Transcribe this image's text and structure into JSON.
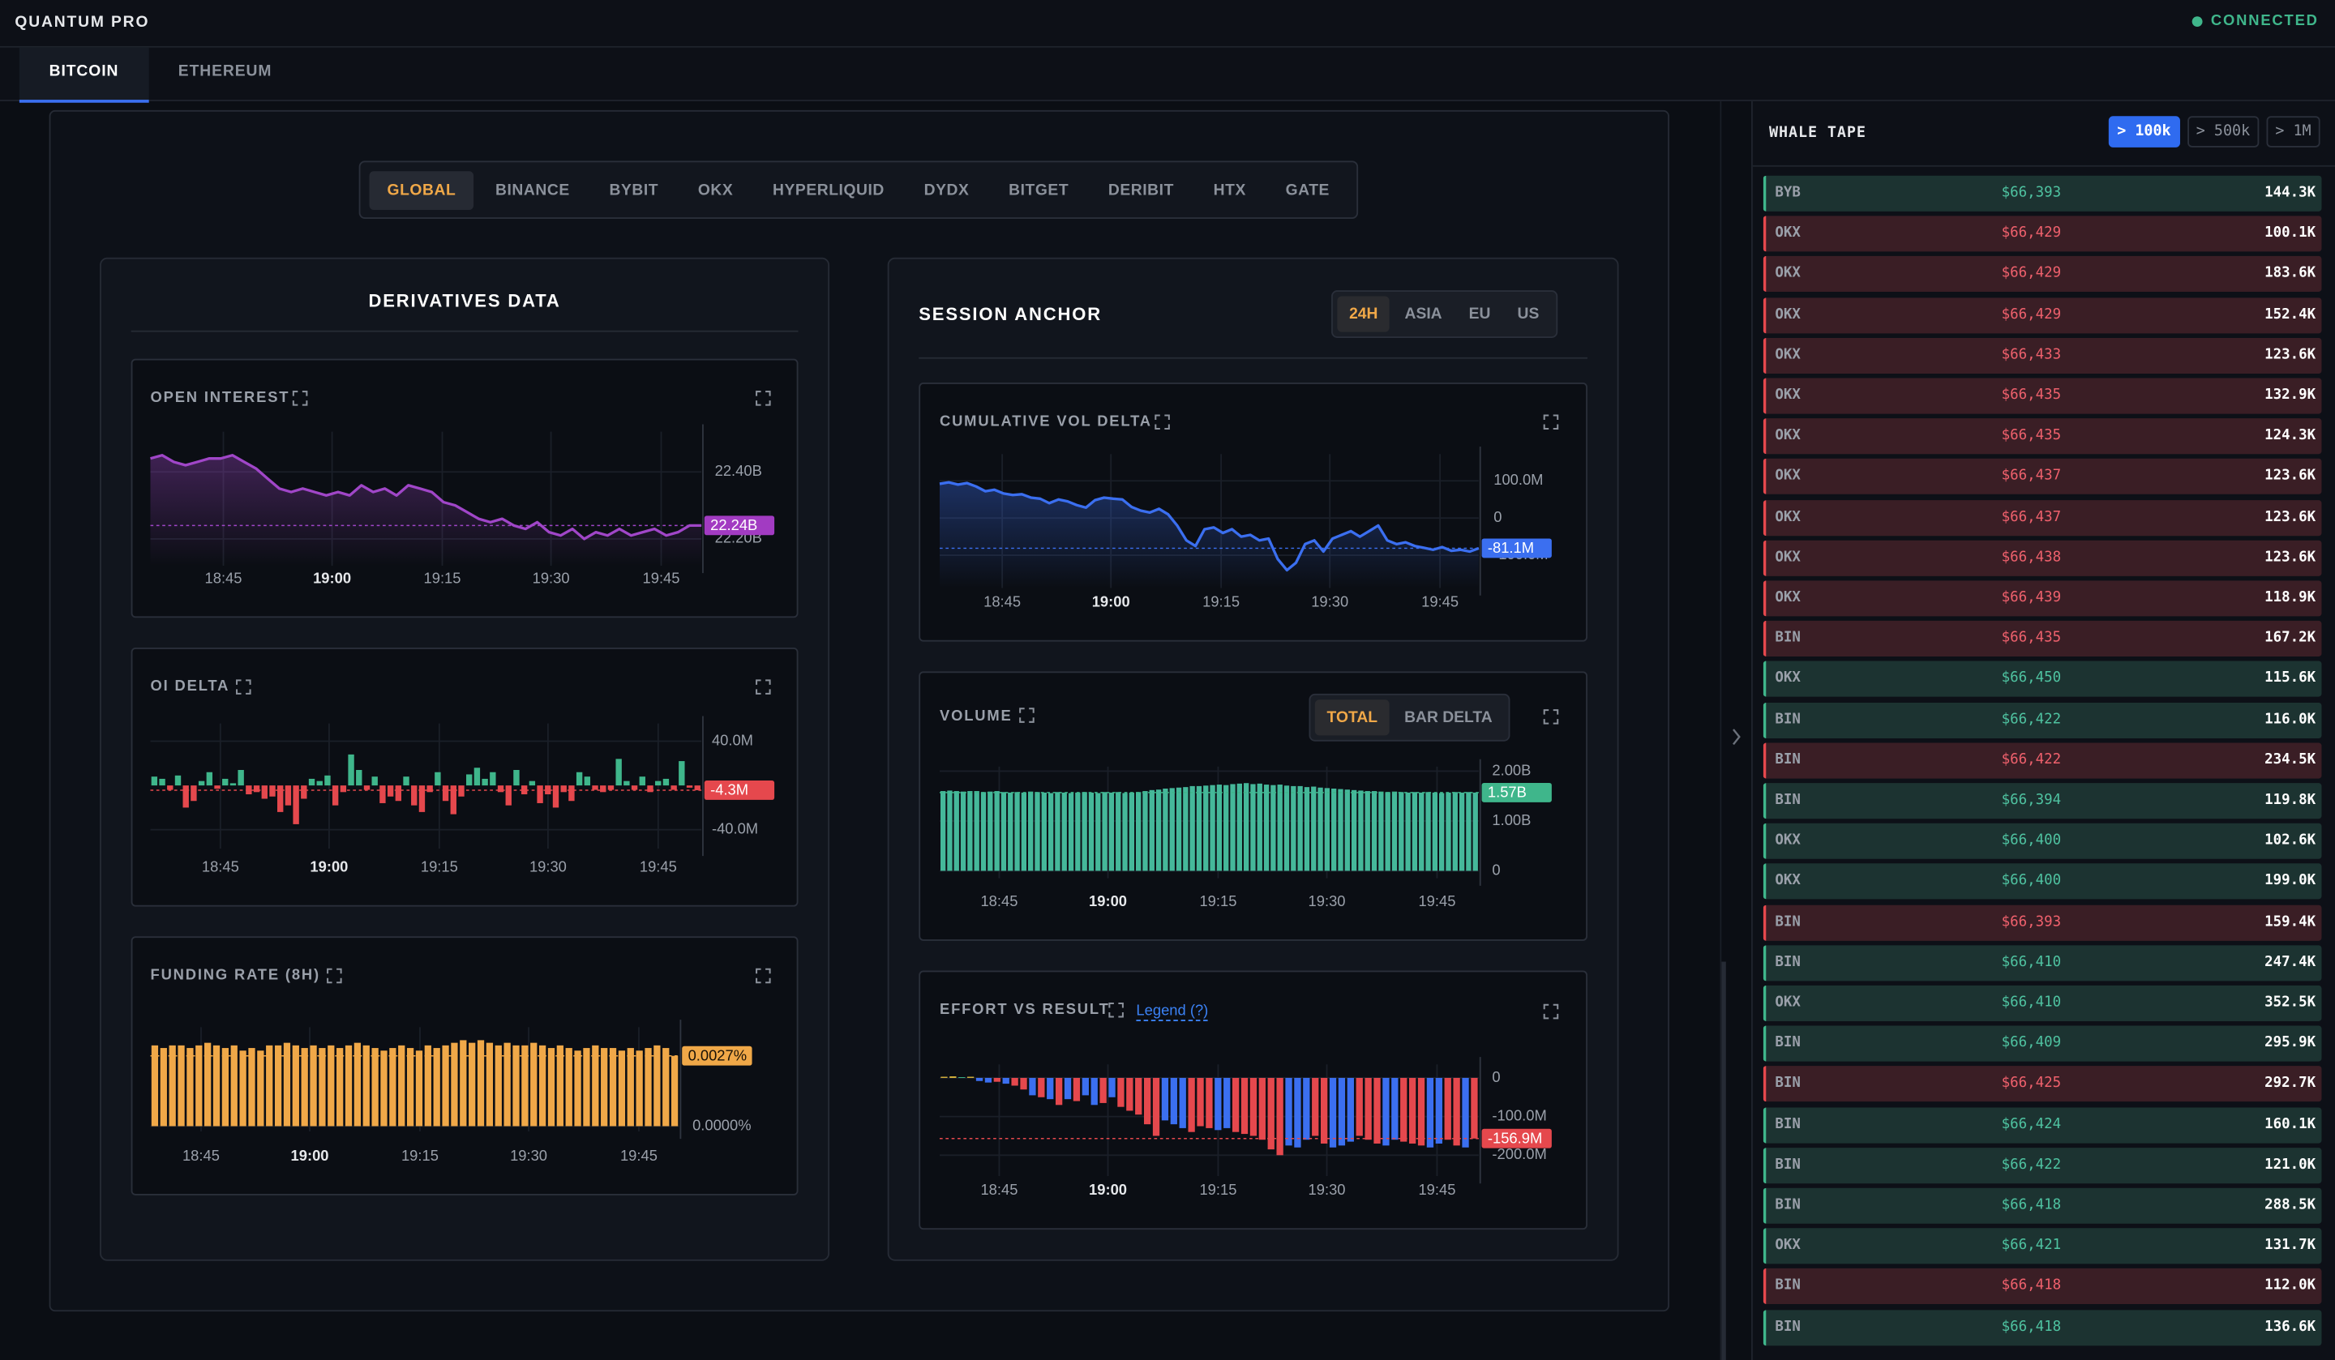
{
  "header": {
    "brand": "QUANTUM PRO",
    "status": "CONNECTED"
  },
  "tabs": [
    "BITCOIN",
    "ETHEREUM"
  ],
  "exchanges": [
    "GLOBAL",
    "BINANCE",
    "BYBIT",
    "OKX",
    "HYPERLIQUID",
    "DYDX",
    "BITGET",
    "DERIBIT",
    "HTX",
    "GATE"
  ],
  "derivatives": {
    "title": "DERIVATIVES DATA"
  },
  "session": {
    "title": "SESSION ANCHOR",
    "sessions": [
      "24H",
      "ASIA",
      "EU",
      "US"
    ]
  },
  "chart_data": [
    {
      "type": "line",
      "title": "OPEN INTEREST",
      "color": "#a046c8",
      "grid": true,
      "xticks": [
        "18:45",
        "19:00",
        "19:15",
        "19:30",
        "19:45"
      ],
      "ylim": [
        22.12,
        22.52
      ],
      "yticks": [
        {
          "value": 22.4,
          "label": "22.40B"
        },
        {
          "value": 22.2,
          "label": "22.20B"
        }
      ],
      "badge": "22.24B",
      "badge_color": "#a23bc2",
      "values": [
        22.44,
        22.45,
        22.43,
        22.42,
        22.43,
        22.44,
        22.44,
        22.45,
        22.43,
        22.41,
        22.38,
        22.35,
        22.34,
        22.35,
        22.34,
        22.33,
        22.34,
        22.33,
        22.36,
        22.34,
        22.35,
        22.33,
        22.36,
        22.35,
        22.34,
        22.31,
        22.3,
        22.28,
        22.26,
        22.25,
        22.26,
        22.24,
        22.23,
        22.25,
        22.22,
        22.21,
        22.23,
        22.2,
        22.22,
        22.21,
        22.23,
        22.21,
        22.22,
        22.23,
        22.21,
        22.22,
        22.24,
        22.24
      ]
    },
    {
      "type": "bar",
      "title": "OI DELTA",
      "color_up": "#3fb68b",
      "color_down": "#e5484d",
      "grid": true,
      "xticks": [
        "18:45",
        "19:00",
        "19:15",
        "19:30",
        "19:45"
      ],
      "ylim": [
        -57,
        56
      ],
      "yticks": [
        {
          "value": 40,
          "label": "40.0M"
        },
        {
          "value": -40,
          "label": "-40.0M"
        }
      ],
      "badge": "-4.3M",
      "badge_color": "#e5484d",
      "values": [
        8,
        6,
        -4,
        9,
        -20,
        -14,
        4,
        12,
        -3,
        6,
        2,
        14,
        -8,
        -6,
        -12,
        -10,
        -24,
        -18,
        -35,
        -12,
        6,
        4,
        9,
        -18,
        -6,
        28,
        14,
        -4,
        8,
        -16,
        -10,
        -14,
        8,
        -18,
        -24,
        -6,
        12,
        -14,
        -26,
        -10,
        10,
        16,
        6,
        12,
        -6,
        -18,
        14,
        -8,
        4,
        -16,
        -8,
        -20,
        -6,
        -14,
        12,
        8,
        -4,
        -6,
        -4,
        24,
        4,
        -4,
        8,
        -6,
        4,
        6,
        -4,
        22,
        -2,
        -4.3
      ]
    },
    {
      "type": "bar",
      "title": "FUNDING RATE (8H)",
      "color": "#f0a848",
      "grid": true,
      "xticks": [
        "18:45",
        "19:00",
        "19:15",
        "19:30",
        "19:45"
      ],
      "ylim": [
        -0.0002,
        0.0038
      ],
      "yticks": [
        {
          "value": 0,
          "label": "0.0000%"
        }
      ],
      "badge": "0.0027%",
      "badge_color": "#f0a848",
      "values": [
        0.0031,
        0.003,
        0.0031,
        0.0031,
        0.003,
        0.0031,
        0.0032,
        0.0031,
        0.003,
        0.0031,
        0.0029,
        0.003,
        0.0029,
        0.0031,
        0.0031,
        0.0032,
        0.0031,
        0.003,
        0.0031,
        0.003,
        0.0031,
        0.003,
        0.0031,
        0.0032,
        0.0031,
        0.003,
        0.0029,
        0.003,
        0.0031,
        0.003,
        0.0029,
        0.0031,
        0.003,
        0.0031,
        0.0032,
        0.0033,
        0.0032,
        0.0033,
        0.0032,
        0.0031,
        0.0032,
        0.0031,
        0.0031,
        0.0032,
        0.0031,
        0.003,
        0.0031,
        0.003,
        0.0029,
        0.003,
        0.0031,
        0.003,
        0.003,
        0.0029,
        0.003,
        0.0029,
        0.003,
        0.0031,
        0.003,
        0.0027
      ]
    },
    {
      "type": "line",
      "title": "CUMULATIVE VOL DELTA",
      "color": "#3b6ff0",
      "grid": true,
      "xticks": [
        "18:45",
        "19:00",
        "19:15",
        "19:30",
        "19:45"
      ],
      "ylim": [
        -188,
        172
      ],
      "yticks": [
        {
          "value": 100,
          "label": "100.0M"
        },
        0,
        {
          "value": -100,
          "label": "-100.0M"
        }
      ],
      "badge": "-81.1M",
      "badge_color": "#3b6ff0",
      "values": [
        92,
        96,
        90,
        94,
        85,
        72,
        76,
        66,
        62,
        64,
        55,
        52,
        40,
        50,
        45,
        35,
        28,
        48,
        55,
        52,
        50,
        30,
        20,
        15,
        25,
        10,
        -20,
        -60,
        -75,
        -30,
        -25,
        -40,
        -30,
        -50,
        -45,
        -60,
        -55,
        -110,
        -140,
        -120,
        -70,
        -60,
        -90,
        -55,
        -45,
        -35,
        -50,
        -35,
        -20,
        -60,
        -70,
        -65,
        -75,
        -80,
        -85,
        -78,
        -88,
        -85,
        -90,
        -81.1
      ]
    },
    {
      "type": "bar",
      "title": "VOLUME",
      "modes": [
        "TOTAL",
        "BAR DELTA"
      ],
      "color": "#45b89a",
      "grid": true,
      "xticks": [
        "18:45",
        "19:00",
        "19:15",
        "19:30",
        "19:45"
      ],
      "ylim": [
        -0.15,
        2.09
      ],
      "yticks": [
        {
          "value": 2,
          "label": "2.00B"
        },
        {
          "value": 1,
          "label": "1.00B"
        },
        0
      ],
      "badge": "1.57B",
      "badge_color": "#3fb68b",
      "values": [
        1.6,
        1.61,
        1.6,
        1.59,
        1.6,
        1.6,
        1.58,
        1.59,
        1.6,
        1.58,
        1.57,
        1.58,
        1.57,
        1.59,
        1.58,
        1.57,
        1.56,
        1.58,
        1.57,
        1.56,
        1.57,
        1.58,
        1.57,
        1.56,
        1.58,
        1.57,
        1.58,
        1.56,
        1.57,
        1.58,
        1.6,
        1.62,
        1.63,
        1.65,
        1.66,
        1.67,
        1.68,
        1.7,
        1.7,
        1.71,
        1.72,
        1.73,
        1.72,
        1.74,
        1.75,
        1.76,
        1.74,
        1.75,
        1.73,
        1.72,
        1.73,
        1.71,
        1.7,
        1.7,
        1.68,
        1.69,
        1.67,
        1.66,
        1.65,
        1.64,
        1.63,
        1.62,
        1.61,
        1.6,
        1.6,
        1.59,
        1.58,
        1.59,
        1.58,
        1.57,
        1.58,
        1.57,
        1.58,
        1.57,
        1.56,
        1.57,
        1.58,
        1.57,
        1.58,
        1.57
      ]
    },
    {
      "type": "bar",
      "title": "EFFORT VS RESULT",
      "legend": "Legend (?)",
      "grid": true,
      "xticks": [
        "18:45",
        "19:00",
        "19:15",
        "19:30",
        "19:45"
      ],
      "ylim": [
        -254,
        35
      ],
      "yticks": [
        0,
        {
          "value": -100,
          "label": "-100.0M"
        },
        {
          "value": -200,
          "label": "-200.0M"
        }
      ],
      "badge": "-156.9M",
      "badge_color": "#e5484d",
      "values": [
        3,
        4,
        2,
        3,
        -8,
        -12,
        -10,
        -15,
        -20,
        -30,
        -45,
        -50,
        -55,
        -70,
        -55,
        -60,
        -45,
        -70,
        -65,
        -50,
        -75,
        -85,
        -95,
        -120,
        -150,
        -110,
        -120,
        -130,
        -140,
        -125,
        -130,
        -135,
        -130,
        -140,
        -145,
        -150,
        -160,
        -185,
        -200,
        -175,
        -180,
        -160,
        -150,
        -170,
        -180,
        -175,
        -165,
        -150,
        -160,
        -170,
        -175,
        -160,
        -165,
        -170,
        -175,
        -180,
        -170,
        -160,
        -175,
        -180,
        -156.9
      ],
      "colors": [
        "#d9b43c",
        "#d9b43c",
        "#3fb68b",
        "#d9b43c",
        "#3b6ff0",
        "#3b6ff0",
        "#e5484d",
        "#3b6ff0",
        "#e5484d",
        "#e5484d",
        "#3b6ff0",
        "#e5484d",
        "#3b6ff0",
        "#e5484d",
        "#3b6ff0",
        "#e5484d",
        "#3b6ff0",
        "#3b6ff0",
        "#e5484d",
        "#3b6ff0",
        "#e5484d",
        "#e5484d",
        "#e5484d",
        "#e5484d",
        "#e5484d",
        "#3b6ff0",
        "#3b6ff0",
        "#3b6ff0",
        "#e5484d",
        "#e5484d",
        "#e5484d",
        "#3b6ff0",
        "#3b6ff0",
        "#e5484d",
        "#e5484d",
        "#e5484d",
        "#e5484d",
        "#e5484d",
        "#e5484d",
        "#3b6ff0",
        "#3b6ff0",
        "#3b6ff0",
        "#e5484d",
        "#e5484d",
        "#3b6ff0",
        "#3b6ff0",
        "#3b6ff0",
        "#e5484d",
        "#e5484d",
        "#e5484d",
        "#3b6ff0",
        "#3b6ff0",
        "#e5484d",
        "#e5484d",
        "#e5484d",
        "#3b6ff0",
        "#3b6ff0",
        "#e5484d",
        "#e5484d",
        "#3b6ff0",
        "#e5484d"
      ]
    }
  ],
  "whale_tape": {
    "title": "WHALE TAPE",
    "filters": [
      "> 100k",
      "> 500k",
      "> 1M"
    ],
    "rows": [
      {
        "exchange": "BYB",
        "price": "$66,393",
        "size": "144.3K",
        "color": "green"
      },
      {
        "exchange": "OKX",
        "price": "$66,429",
        "size": "100.1K",
        "color": "red"
      },
      {
        "exchange": "OKX",
        "price": "$66,429",
        "size": "183.6K",
        "color": "red"
      },
      {
        "exchange": "OKX",
        "price": "$66,429",
        "size": "152.4K",
        "color": "red"
      },
      {
        "exchange": "OKX",
        "price": "$66,433",
        "size": "123.6K",
        "color": "red"
      },
      {
        "exchange": "OKX",
        "price": "$66,435",
        "size": "132.9K",
        "color": "red"
      },
      {
        "exchange": "OKX",
        "price": "$66,435",
        "size": "124.3K",
        "color": "red"
      },
      {
        "exchange": "OKX",
        "price": "$66,437",
        "size": "123.6K",
        "color": "red"
      },
      {
        "exchange": "OKX",
        "price": "$66,437",
        "size": "123.6K",
        "color": "red"
      },
      {
        "exchange": "OKX",
        "price": "$66,438",
        "size": "123.6K",
        "color": "red"
      },
      {
        "exchange": "OKX",
        "price": "$66,439",
        "size": "118.9K",
        "color": "red"
      },
      {
        "exchange": "BIN",
        "price": "$66,435",
        "size": "167.2K",
        "color": "red"
      },
      {
        "exchange": "OKX",
        "price": "$66,450",
        "size": "115.6K",
        "color": "green"
      },
      {
        "exchange": "BIN",
        "price": "$66,422",
        "size": "116.0K",
        "color": "green"
      },
      {
        "exchange": "BIN",
        "price": "$66,422",
        "size": "234.5K",
        "color": "red"
      },
      {
        "exchange": "BIN",
        "price": "$66,394",
        "size": "119.8K",
        "color": "green"
      },
      {
        "exchange": "OKX",
        "price": "$66,400",
        "size": "102.6K",
        "color": "green"
      },
      {
        "exchange": "OKX",
        "price": "$66,400",
        "size": "199.0K",
        "color": "green"
      },
      {
        "exchange": "BIN",
        "price": "$66,393",
        "size": "159.4K",
        "color": "red"
      },
      {
        "exchange": "BIN",
        "price": "$66,410",
        "size": "247.4K",
        "color": "green"
      },
      {
        "exchange": "OKX",
        "price": "$66,410",
        "size": "352.5K",
        "color": "green"
      },
      {
        "exchange": "BIN",
        "price": "$66,409",
        "size": "295.9K",
        "color": "green"
      },
      {
        "exchange": "BIN",
        "price": "$66,425",
        "size": "292.7K",
        "color": "red"
      },
      {
        "exchange": "BIN",
        "price": "$66,424",
        "size": "160.1K",
        "color": "green"
      },
      {
        "exchange": "BIN",
        "price": "$66,422",
        "size": "121.0K",
        "color": "green"
      },
      {
        "exchange": "BIN",
        "price": "$66,418",
        "size": "288.5K",
        "color": "green"
      },
      {
        "exchange": "OKX",
        "price": "$66,421",
        "size": "131.7K",
        "color": "green"
      },
      {
        "exchange": "BIN",
        "price": "$66,418",
        "size": "112.0K",
        "color": "red"
      },
      {
        "exchange": "BIN",
        "price": "$66,418",
        "size": "136.6K",
        "color": "green"
      }
    ]
  }
}
